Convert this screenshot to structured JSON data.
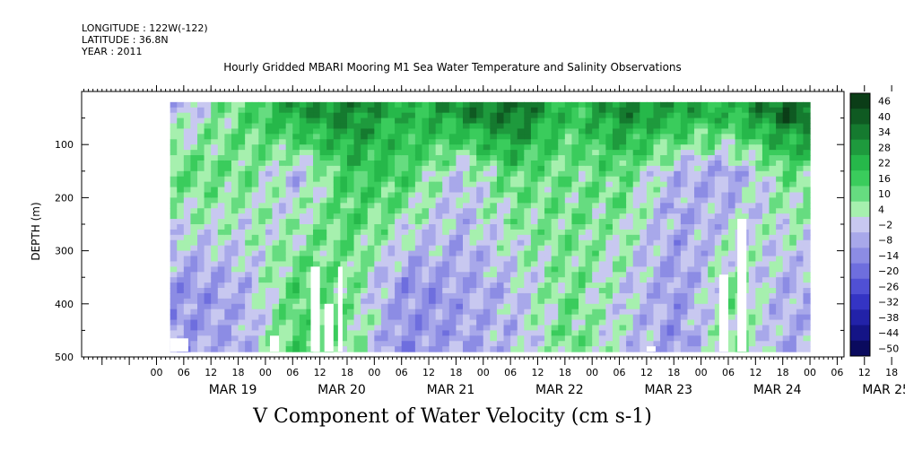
{
  "header": {
    "longitude": "LONGITUDE : 122W(-122)",
    "latitude": "LATITUDE : 36.8N",
    "year": "YEAR : 2011"
  },
  "chart_data": {
    "type": "heatmap",
    "title": "Hourly Gridded MBARI Mooring M1 Sea Water Temperature and Salinity Observations",
    "xlabel": "V Component of Water Velocity (cm s-1)",
    "ylabel": "DEPTH (m)",
    "y_axis": {
      "range": [
        500,
        0
      ],
      "inverted": true,
      "ticks": [
        100,
        200,
        300,
        400,
        500
      ]
    },
    "x_axis": {
      "hour_ticks": [
        "00",
        "06",
        "12",
        "18",
        "00",
        "06",
        "12",
        "18",
        "00",
        "06",
        "12",
        "18",
        "00",
        "06",
        "12",
        "18",
        "00",
        "06",
        "12",
        "18",
        "00",
        "06",
        "12",
        "18",
        "00",
        "06",
        "12",
        "18"
      ],
      "day_labels": [
        "MAR 19",
        "MAR 20",
        "MAR 21",
        "MAR 22",
        "MAR 23",
        "MAR 24",
        "MAR 25"
      ]
    },
    "colorbar": {
      "levels": [
        46,
        40,
        34,
        28,
        22,
        16,
        10,
        4,
        -2,
        -8,
        -14,
        -20,
        -26,
        -32,
        -38,
        -44,
        -50
      ],
      "colors": [
        "#0b3d17",
        "#0f5a22",
        "#157a2f",
        "#1e9a3d",
        "#26b84a",
        "#3acc5c",
        "#66dc80",
        "#a6f0ae",
        "#c8c8f0",
        "#a8a8ea",
        "#8c8ce4",
        "#6e6ede",
        "#5050d4",
        "#3434c4",
        "#2222a8",
        "#141486",
        "#0a0a5e"
      ]
    },
    "data_range_hours": [
      -3,
      138
    ],
    "depth_range_m": [
      20,
      490
    ],
    "series": [
      {
        "band": "surface",
        "depth_m": [
          20,
          60
        ],
        "hours": [
          0,
          12,
          24,
          36,
          48,
          60,
          72,
          84,
          96,
          108,
          120,
          132
        ],
        "values": [
          -6,
          8,
          24,
          30,
          18,
          26,
          34,
          14,
          28,
          22,
          18,
          36
        ]
      },
      {
        "band": "mid",
        "depth_m": [
          60,
          250
        ],
        "hours": [
          0,
          12,
          24,
          36,
          48,
          60,
          72,
          84,
          96,
          108,
          120,
          132
        ],
        "values": [
          8,
          6,
          -8,
          14,
          12,
          -6,
          10,
          4,
          8,
          -10,
          -12,
          6
        ]
      },
      {
        "band": "deep",
        "depth_m": [
          250,
          490
        ],
        "hours": [
          0,
          12,
          24,
          36,
          48,
          60,
          72,
          84,
          96,
          108,
          120,
          132
        ],
        "values": [
          -14,
          -10,
          10,
          4,
          -16,
          -12,
          -8,
          6,
          -4,
          -14,
          4,
          -10
        ]
      }
    ],
    "missing_regions": [
      {
        "hours": [
          -3,
          1
        ],
        "depth_m": [
          465,
          490
        ]
      },
      {
        "hours": [
          19,
          21
        ],
        "depth_m": [
          460,
          490
        ]
      },
      {
        "hours": [
          28,
          30
        ],
        "depth_m": [
          330,
          490
        ]
      },
      {
        "hours": [
          31,
          33
        ],
        "depth_m": [
          400,
          490
        ]
      },
      {
        "hours": [
          34,
          35
        ],
        "depth_m": [
          330,
          490
        ]
      },
      {
        "hours": [
          102,
          104
        ],
        "depth_m": [
          480,
          490
        ]
      },
      {
        "hours": [
          118,
          120
        ],
        "depth_m": [
          345,
          490
        ]
      },
      {
        "hours": [
          122,
          124
        ],
        "depth_m": [
          240,
          490
        ]
      }
    ]
  }
}
